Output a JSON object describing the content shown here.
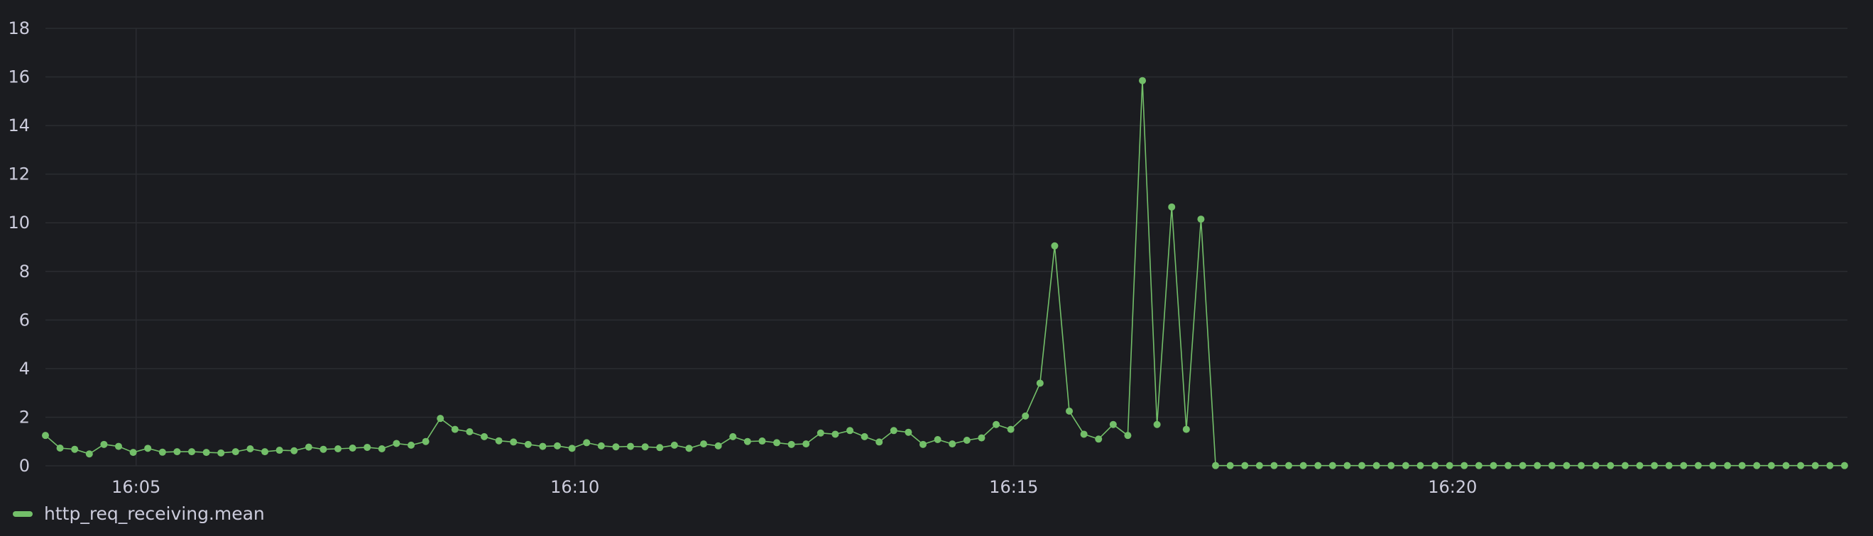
{
  "chart_data": {
    "type": "line",
    "title": "",
    "xlabel": "",
    "ylabel": "",
    "ylim": [
      0,
      18
    ],
    "y_ticks": [
      "0",
      "2",
      "4",
      "6",
      "8",
      "10",
      "12",
      "14",
      "16",
      "18"
    ],
    "x_range": [
      "16:03:58",
      "16:24:30"
    ],
    "x_ticks": [
      "16:05",
      "16:10",
      "16:15",
      "16:20"
    ],
    "grid": true,
    "legend_position": "bottom-left",
    "series": [
      {
        "name": "http_req_receiving.mean",
        "color": "#73bf69",
        "x": [
          "16:03:58",
          "16:04:08",
          "16:04:18",
          "16:04:28",
          "16:04:38",
          "16:04:48",
          "16:04:58",
          "16:05:08",
          "16:05:18",
          "16:05:28",
          "16:05:38",
          "16:05:48",
          "16:05:58",
          "16:06:08",
          "16:06:18",
          "16:06:28",
          "16:06:38",
          "16:06:48",
          "16:06:58",
          "16:07:08",
          "16:07:18",
          "16:07:28",
          "16:07:38",
          "16:07:48",
          "16:07:58",
          "16:08:08",
          "16:08:18",
          "16:08:28",
          "16:08:38",
          "16:08:48",
          "16:08:58",
          "16:09:08",
          "16:09:18",
          "16:09:28",
          "16:09:38",
          "16:09:48",
          "16:09:58",
          "16:10:08",
          "16:10:18",
          "16:10:28",
          "16:10:38",
          "16:10:48",
          "16:10:58",
          "16:11:08",
          "16:11:18",
          "16:11:28",
          "16:11:38",
          "16:11:48",
          "16:11:58",
          "16:12:08",
          "16:12:18",
          "16:12:28",
          "16:12:38",
          "16:12:48",
          "16:12:58",
          "16:13:08",
          "16:13:18",
          "16:13:28",
          "16:13:38",
          "16:13:48",
          "16:13:58",
          "16:14:08",
          "16:14:18",
          "16:14:28",
          "16:14:38",
          "16:14:48",
          "16:14:58",
          "16:15:08",
          "16:15:18",
          "16:15:28",
          "16:15:38",
          "16:15:48",
          "16:15:58",
          "16:16:08",
          "16:16:18",
          "16:16:28",
          "16:16:38",
          "16:16:48",
          "16:16:58",
          "16:17:08",
          "16:17:18",
          "16:17:28",
          "16:17:38",
          "16:17:48",
          "16:17:58",
          "16:18:08",
          "16:18:18",
          "16:18:28",
          "16:18:38",
          "16:18:48",
          "16:18:58",
          "16:19:08",
          "16:19:18",
          "16:19:28",
          "16:19:38",
          "16:19:48",
          "16:19:58",
          "16:20:08",
          "16:20:18",
          "16:20:28",
          "16:20:38",
          "16:20:48",
          "16:20:58",
          "16:21:08",
          "16:21:18",
          "16:21:28",
          "16:21:38",
          "16:21:48",
          "16:21:58",
          "16:22:08",
          "16:22:18",
          "16:22:28",
          "16:22:38",
          "16:22:48",
          "16:22:58",
          "16:23:08",
          "16:23:18",
          "16:23:28",
          "16:23:38",
          "16:23:48",
          "16:23:58",
          "16:24:08",
          "16:24:18",
          "16:24:28"
        ],
        "values": [
          1.25,
          0.73,
          0.68,
          0.49,
          0.88,
          0.8,
          0.55,
          0.72,
          0.56,
          0.58,
          0.58,
          0.55,
          0.53,
          0.58,
          0.7,
          0.58,
          0.64,
          0.62,
          0.77,
          0.68,
          0.7,
          0.73,
          0.76,
          0.7,
          0.92,
          0.85,
          1.0,
          1.95,
          1.5,
          1.4,
          1.2,
          1.03,
          0.98,
          0.88,
          0.8,
          0.82,
          0.72,
          0.95,
          0.82,
          0.78,
          0.8,
          0.78,
          0.75,
          0.85,
          0.72,
          0.9,
          0.82,
          1.2,
          1.0,
          1.02,
          0.95,
          0.88,
          0.9,
          1.35,
          1.3,
          1.45,
          1.2,
          0.98,
          1.45,
          1.38,
          0.88,
          1.08,
          0.9,
          1.05,
          1.15,
          1.7,
          1.5,
          2.05,
          3.4,
          9.05,
          2.25,
          1.3,
          1.1,
          1.7,
          1.25,
          15.85,
          1.7,
          10.65,
          1.5,
          10.15,
          0.01,
          0.01,
          0.01,
          0.01,
          0.01,
          0.01,
          0.01,
          0.01,
          0.01,
          0.01,
          0.01,
          0.01,
          0.01,
          0.01,
          0.01,
          0.01,
          0.01,
          0.01,
          0.01,
          0.01,
          0.01,
          0.01,
          0.01,
          0.01,
          0.01,
          0.01,
          0.01,
          0.01,
          0.01,
          0.01,
          0.01,
          0.01,
          0.01,
          0.01,
          0.01,
          0.01,
          0.01,
          0.01,
          0.01,
          0.01,
          0.01,
          0.01,
          0.01,
          0.01
        ]
      }
    ]
  }
}
